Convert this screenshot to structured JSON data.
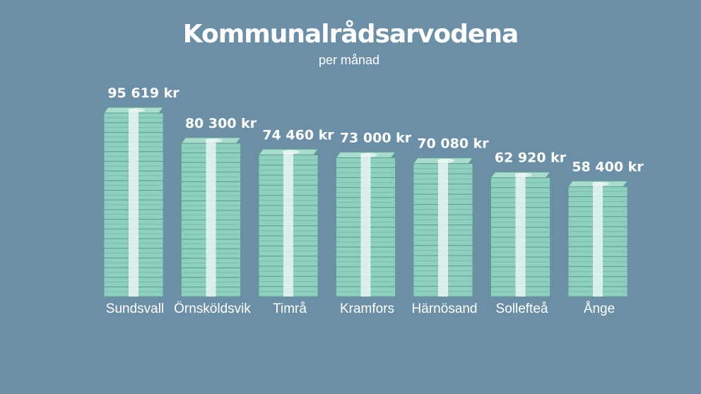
{
  "colors": {
    "background": "#6a8fa7",
    "note_front": "#8fcfbf",
    "note_top": "#a9dccd",
    "note_side": "#78b9a9",
    "note_line": "#5f9f90",
    "band": "#eaf6f2"
  },
  "chart_data": {
    "type": "bar",
    "title": "Kommunalrådsarvodena",
    "subtitle": "per månad",
    "unit": "kr",
    "categories": [
      "Sundsvall",
      "Örnsköldsvik",
      "Timrå",
      "Kramfors",
      "Härnösand",
      "Sollefteå",
      "Ånge"
    ],
    "values": [
      95619,
      80300,
      74460,
      73000,
      70080,
      62920,
      58400
    ],
    "value_labels": [
      "95 619 kr",
      "80 300 kr",
      "74 460 kr",
      "73 000 kr",
      "70 080 kr",
      "62 920 kr",
      "58 400 kr"
    ],
    "ylim": [
      0,
      95619
    ],
    "grid": false,
    "legend": "none"
  }
}
